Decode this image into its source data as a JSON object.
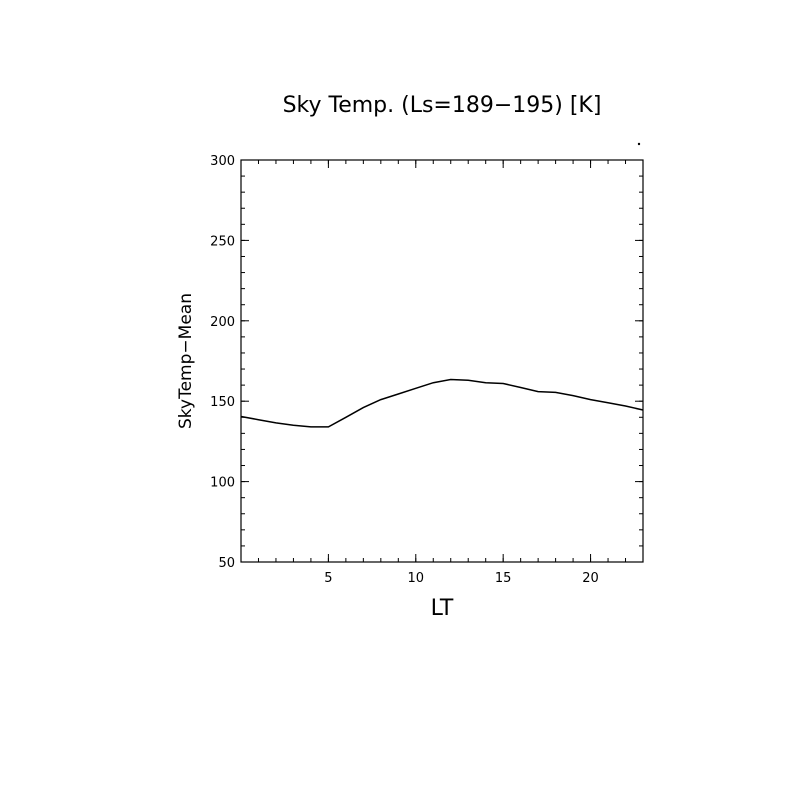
{
  "chart_data": {
    "type": "line",
    "title": "Sky Temp. (Ls=189−195) [K]",
    "xlabel": "LT",
    "ylabel": "SkyTemp−Mean",
    "xlim": [
      0,
      23
    ],
    "ylim": [
      50,
      300
    ],
    "xticks": [
      5,
      10,
      15,
      20
    ],
    "xtick_labels": [
      "5",
      "10",
      "15",
      "20"
    ],
    "yticks": [
      50,
      100,
      150,
      200,
      250,
      300
    ],
    "ytick_labels": [
      "50",
      "100",
      "150",
      "200",
      "250",
      "300"
    ],
    "grid": false,
    "series": [
      {
        "x": [
          0,
          1,
          2,
          3,
          4,
          5,
          6,
          7,
          8,
          9,
          10,
          11,
          12,
          13,
          14,
          15,
          16,
          17,
          18,
          19,
          20,
          21,
          22,
          23
        ],
        "y": [
          140.5,
          138.5,
          136.5,
          135,
          134,
          134,
          140,
          146,
          151,
          154.5,
          158,
          161.5,
          163.5,
          163,
          161.5,
          161,
          158.5,
          156,
          155.5,
          153.5,
          151,
          149,
          147,
          144.5
        ],
        "color": "#000000"
      }
    ]
  }
}
